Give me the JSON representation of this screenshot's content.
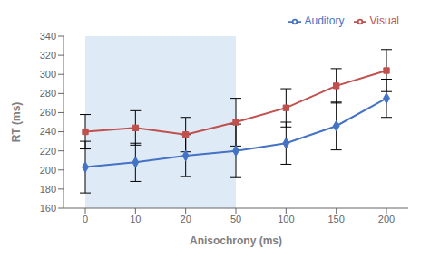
{
  "chart_data": {
    "type": "line",
    "categories": [
      "0",
      "10",
      "20",
      "50",
      "100",
      "150",
      "200"
    ],
    "series": [
      {
        "name": "Auditory",
        "color": "#4472C4",
        "marker": "diamond",
        "values": [
          203,
          208,
          215,
          220,
          228,
          246,
          275
        ],
        "yerr": [
          27,
          20,
          22,
          28,
          22,
          25,
          20
        ]
      },
      {
        "name": "Visual",
        "color": "#C0504D",
        "marker": "square",
        "values": [
          240,
          244,
          237,
          250,
          265,
          288,
          304
        ],
        "yerr": [
          18,
          18,
          18,
          25,
          20,
          18,
          22
        ]
      }
    ],
    "xlabel": "Anisochrony (ms)",
    "ylabel": "RT (ms)",
    "ylim": [
      160,
      340
    ],
    "yticks": [
      160,
      180,
      200,
      220,
      240,
      260,
      280,
      300,
      320,
      340
    ],
    "grid": false,
    "legend": "upper right",
    "shaded": {
      "from": "0",
      "to": "50",
      "color": "#C8DCF0"
    }
  }
}
